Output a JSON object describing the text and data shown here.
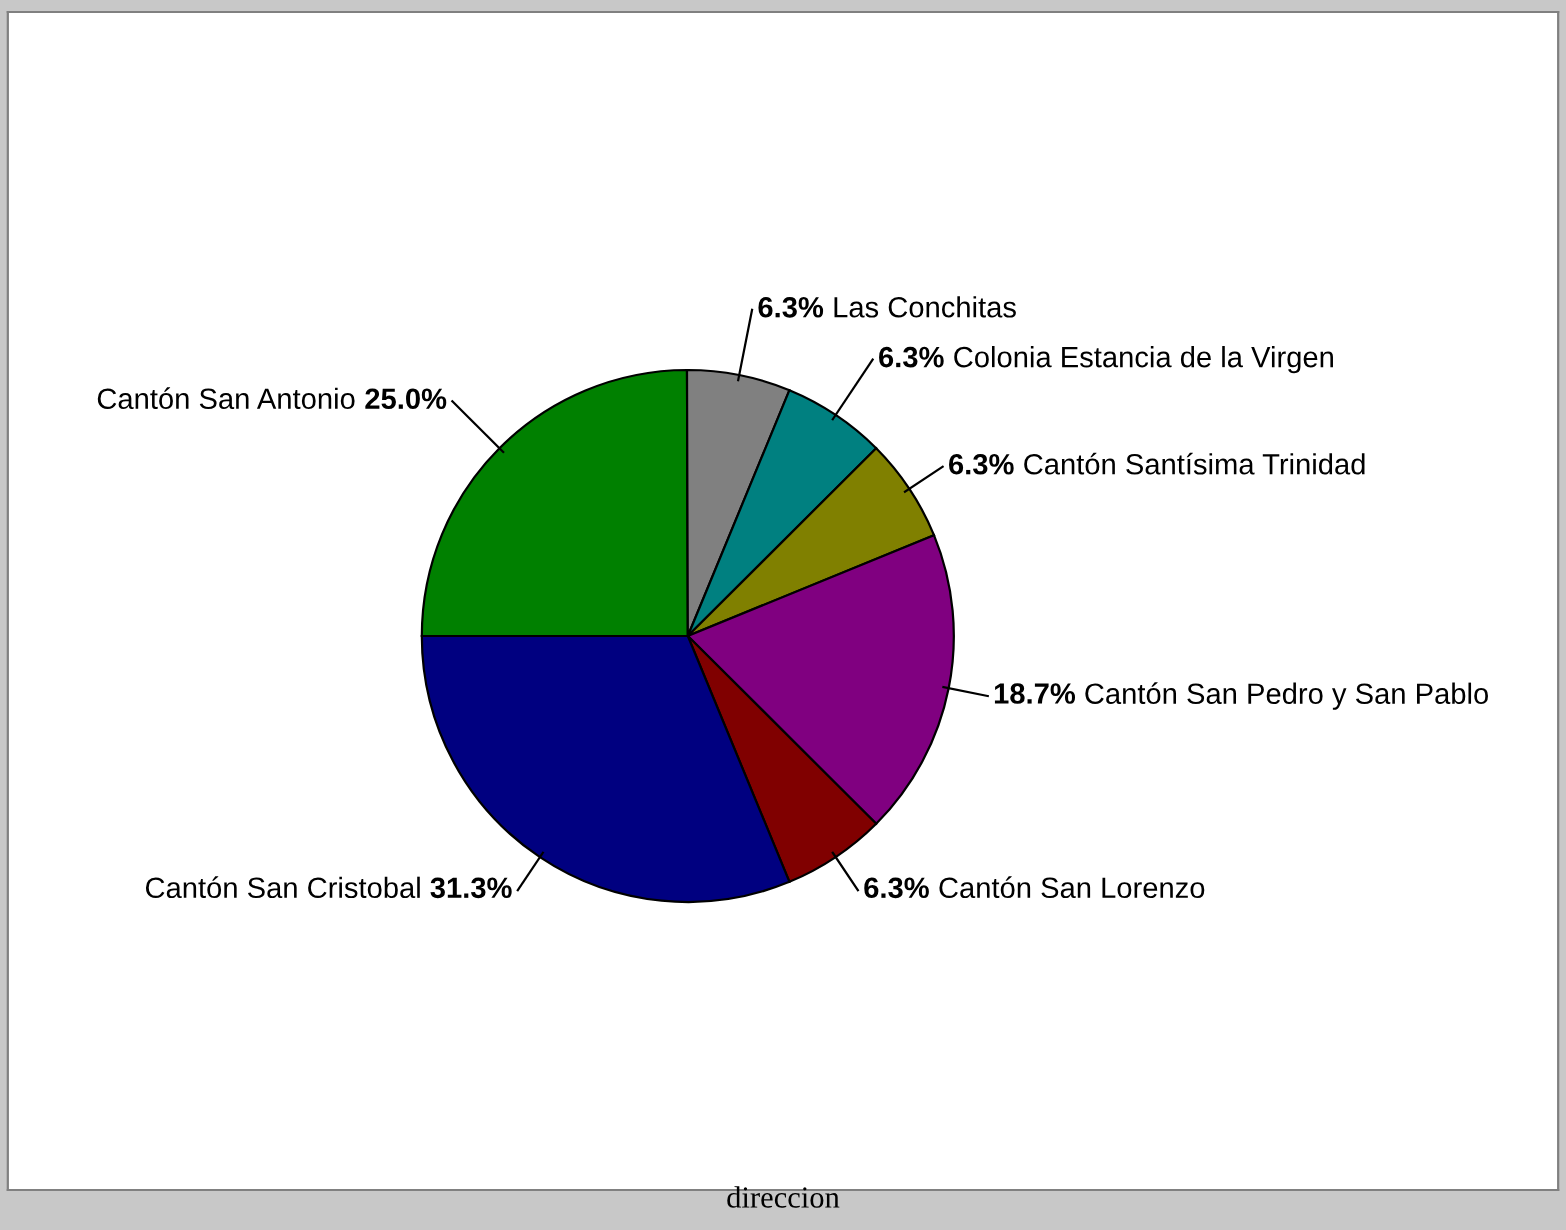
{
  "chart_data": {
    "type": "pie",
    "xlabel": "direccion",
    "categories": [
      "Cantón San Antonio",
      "Las Conchitas",
      "Colonia Estancia de la Virgen",
      "Cantón Santísima Trinidad",
      "Cantón San Pedro y San Pablo",
      "Cantón San Lorenzo",
      "Cantón San Cristobal"
    ],
    "values": [
      25.0,
      6.3,
      6.3,
      6.3,
      18.7,
      6.3,
      31.3
    ],
    "colors": [
      "#008000",
      "#808080",
      "#008080",
      "#808000",
      "#800080",
      "#800000",
      "#000080"
    ],
    "value_labels": [
      "25.0%",
      "6.3%",
      "6.3%",
      "6.3%",
      "18.7%",
      "6.3%",
      "31.3%"
    ]
  }
}
